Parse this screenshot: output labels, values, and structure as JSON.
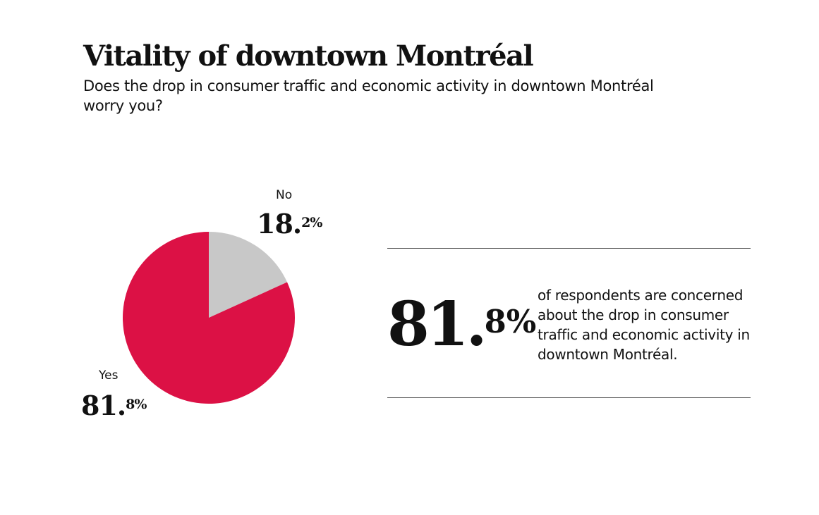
{
  "chart_data": {
    "type": "pie",
    "title": "Vitality of downtown Montréal",
    "subtitle": "Does the drop in consumer traffic and economic activity in downtown Montréal worry you?",
    "categories": [
      "No",
      "Yes"
    ],
    "values": [
      18.2,
      81.8
    ],
    "units": "%",
    "colors": [
      "#c8c8c8",
      "#dc1145"
    ],
    "labels": [
      {
        "category": "No",
        "int": "18.",
        "dec": "2%"
      },
      {
        "category": "Yes",
        "int": "81.",
        "dec": "8%"
      }
    ],
    "start": "12 o'clock, clockwise"
  },
  "callout": {
    "int": "81.",
    "dec": "8%",
    "text": "of respondents are concerned about the drop in consumer traffic and economic activity in downtown Montréal."
  }
}
